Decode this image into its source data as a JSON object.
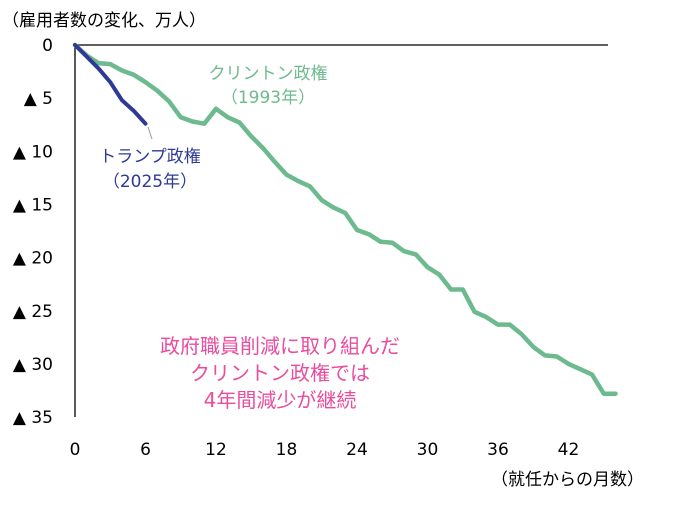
{
  "chart_data": {
    "type": "line",
    "ylabel": "（雇用者数の変化、万人）",
    "xlabel": "（就任からの月数）",
    "xlim": [
      0,
      46
    ],
    "ylim": [
      0,
      35
    ],
    "xticks": [
      0,
      6,
      12,
      18,
      24,
      30,
      36,
      42
    ],
    "yticks": [
      {
        "value": 0,
        "label": "0"
      },
      {
        "value": 5,
        "label": "▲ 5"
      },
      {
        "value": 10,
        "label": "▲ 10"
      },
      {
        "value": 15,
        "label": "▲ 15"
      },
      {
        "value": 20,
        "label": "▲ 20"
      },
      {
        "value": 25,
        "label": "▲ 25"
      },
      {
        "value": 30,
        "label": "▲ 30"
      },
      {
        "value": 35,
        "label": "▲ 35"
      }
    ],
    "series": [
      {
        "name": "クリントン政権",
        "sublabel": "（1993年）",
        "color": "#6dba8e",
        "x": [
          0,
          1,
          2,
          3,
          4,
          5,
          6,
          7,
          8,
          9,
          10,
          11,
          12,
          13,
          14,
          15,
          16,
          17,
          18,
          19,
          20,
          21,
          22,
          23,
          24,
          25,
          26,
          27,
          28,
          29,
          30,
          31,
          32,
          33,
          34,
          35,
          36,
          37,
          38,
          39,
          40,
          41,
          42,
          43,
          44,
          45,
          46
        ],
        "values": [
          0,
          1.0,
          1.7,
          1.8,
          2.4,
          2.8,
          3.5,
          4.3,
          5.3,
          6.8,
          7.2,
          7.4,
          6.0,
          6.8,
          7.3,
          8.6,
          9.7,
          11.0,
          12.2,
          12.8,
          13.3,
          14.6,
          15.3,
          15.8,
          17.4,
          17.8,
          18.5,
          18.6,
          19.4,
          19.7,
          20.9,
          21.6,
          23.0,
          23.0,
          25.1,
          25.6,
          26.3,
          26.3,
          27.2,
          28.4,
          29.2,
          29.3,
          30.0,
          30.5,
          31.0,
          32.8,
          32.8
        ]
      },
      {
        "name": "トランプ政権",
        "sublabel": "（2025年）",
        "color": "#2e3a93",
        "x": [
          0,
          1,
          2,
          3,
          4,
          5,
          6
        ],
        "values": [
          0,
          1.1,
          2.2,
          3.5,
          5.2,
          6.2,
          7.4
        ]
      }
    ],
    "annotation": {
      "lines": [
        "政府職員削減に取り組んだ",
        "クリントン政権では",
        "4年間減少が継続"
      ],
      "color": "#ea4c9e"
    }
  }
}
